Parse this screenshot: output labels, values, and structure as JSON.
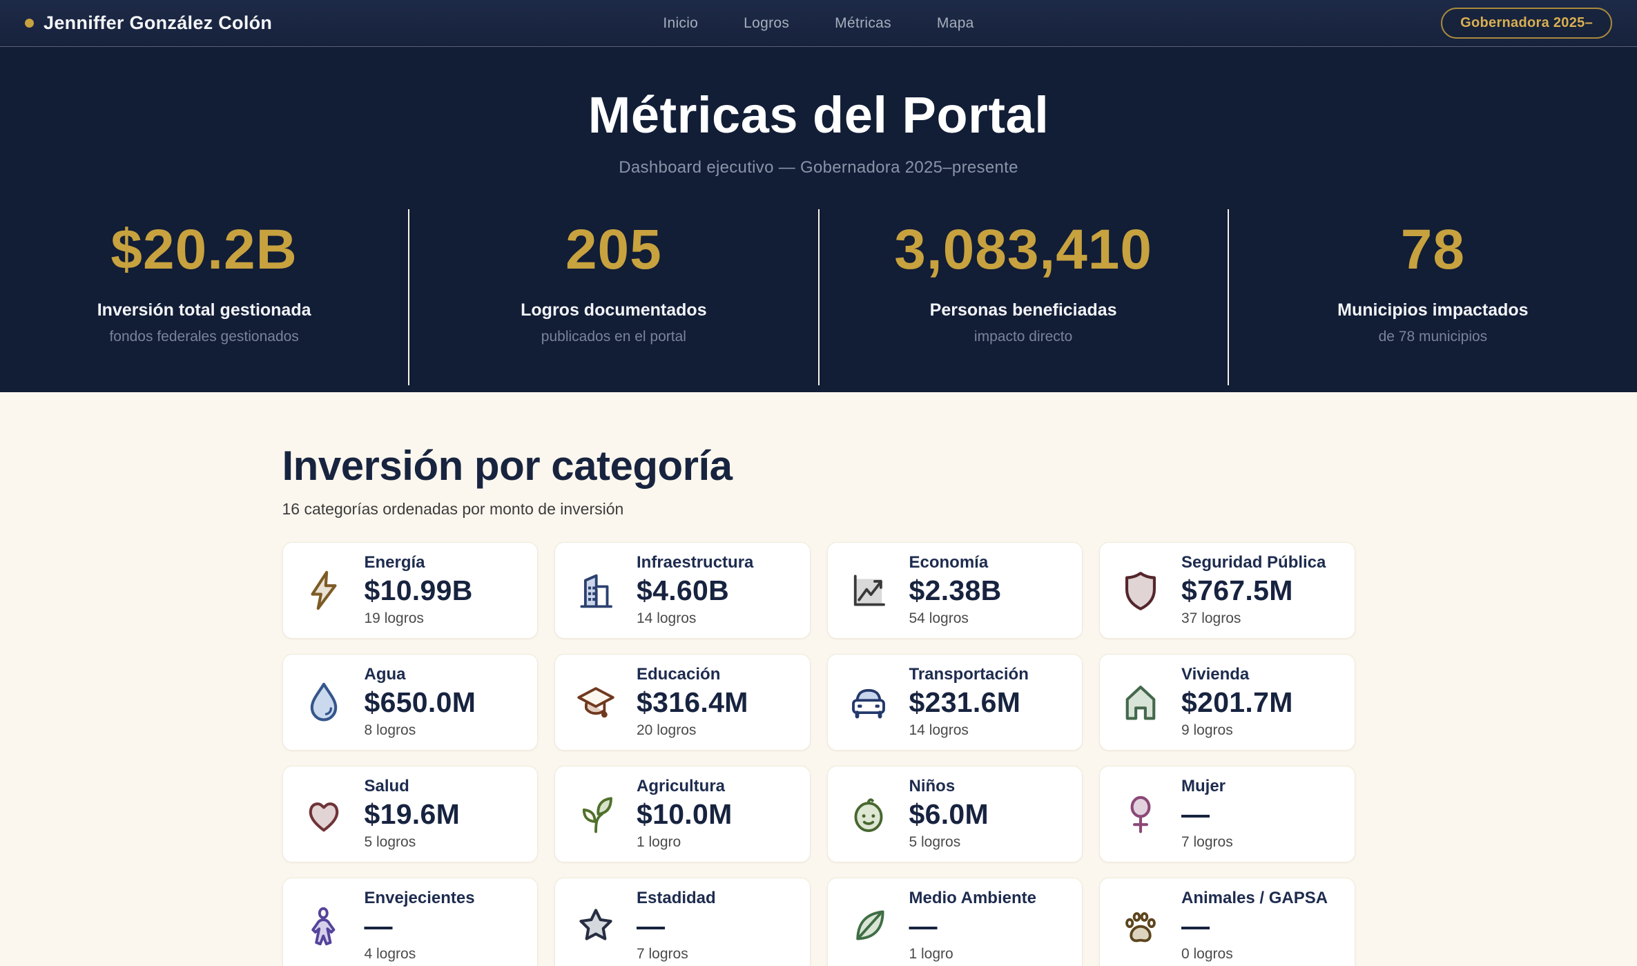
{
  "brand": {
    "name": "Jenniffer González Colón",
    "badge": "Gobernadora 2025–"
  },
  "nav": {
    "items": [
      "Inicio",
      "Logros",
      "Métricas",
      "Mapa"
    ]
  },
  "hero": {
    "title": "Métricas del Portal",
    "subtitle": "Dashboard ejecutivo — Gobernadora 2025–presente",
    "stats": [
      {
        "value": "$20.2B",
        "label": "Inversión total gestionada",
        "sub": "fondos federales gestionados"
      },
      {
        "value": "205",
        "label": "Logros documentados",
        "sub": "publicados en el portal"
      },
      {
        "value": "3,083,410",
        "label": "Personas beneficiadas",
        "sub": "impacto directo"
      },
      {
        "value": "78",
        "label": "Municipios impactados",
        "sub": "de 78 municipios"
      }
    ]
  },
  "categories": {
    "title": "Inversión por categoría",
    "subtitle": "16 categorías ordenadas por monto de inversión",
    "cards": [
      {
        "icon": "lightning-icon",
        "name": "Energía",
        "amount": "$10.99B",
        "count": "19 logros"
      },
      {
        "icon": "building-icon",
        "name": "Infraestructura",
        "amount": "$4.60B",
        "count": "14 logros"
      },
      {
        "icon": "chart-icon",
        "name": "Economía",
        "amount": "$2.38B",
        "count": "54 logros"
      },
      {
        "icon": "shield-icon",
        "name": "Seguridad Pública",
        "amount": "$767.5M",
        "count": "37 logros"
      },
      {
        "icon": "droplet-icon",
        "name": "Agua",
        "amount": "$650.0M",
        "count": "8 logros"
      },
      {
        "icon": "graduation-cap-icon",
        "name": "Educación",
        "amount": "$316.4M",
        "count": "20 logros"
      },
      {
        "icon": "car-icon",
        "name": "Transportación",
        "amount": "$231.6M",
        "count": "14 logros"
      },
      {
        "icon": "house-icon",
        "name": "Vivienda",
        "amount": "$201.7M",
        "count": "9 logros"
      },
      {
        "icon": "heart-icon",
        "name": "Salud",
        "amount": "$19.6M",
        "count": "5 logros"
      },
      {
        "icon": "sprout-icon",
        "name": "Agricultura",
        "amount": "$10.0M",
        "count": "1 logro"
      },
      {
        "icon": "baby-icon",
        "name": "Niños",
        "amount": "$6.0M",
        "count": "5 logros"
      },
      {
        "icon": "female-icon",
        "name": "Mujer",
        "amount": "—",
        "count": "7 logros"
      },
      {
        "icon": "person-icon",
        "name": "Envejecientes",
        "amount": "—",
        "count": "4 logros"
      },
      {
        "icon": "star-icon",
        "name": "Estadidad",
        "amount": "—",
        "count": "7 logros"
      },
      {
        "icon": "leaf-icon",
        "name": "Medio Ambiente",
        "amount": "—",
        "count": "1 logro"
      },
      {
        "icon": "paw-icon",
        "name": "Animales / GAPSA",
        "amount": "—",
        "count": "0 logros"
      }
    ]
  },
  "colors": {
    "navy": "#121D36",
    "gold": "#C7A23E",
    "cream": "#FBF7EE"
  }
}
